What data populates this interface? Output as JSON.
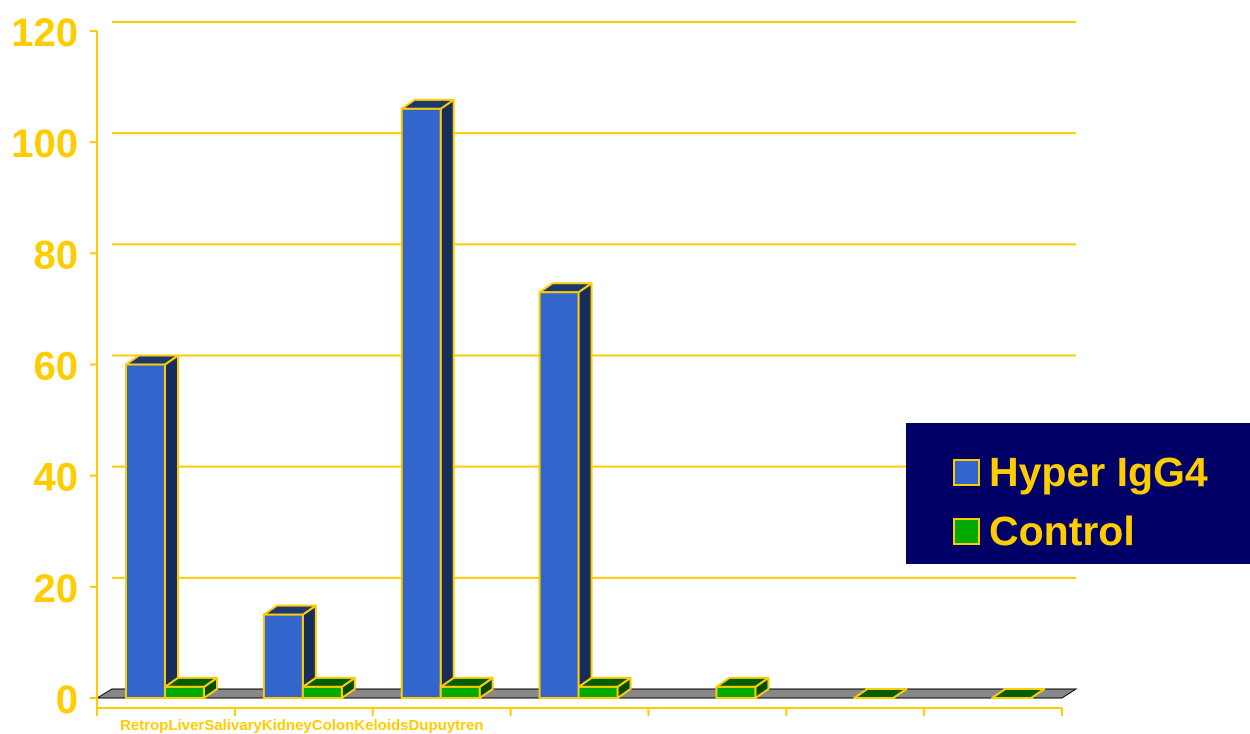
{
  "chart_data": {
    "type": "bar",
    "categories": [
      "Retrop",
      "Liver",
      "Salivary",
      "Kidney",
      "Colon",
      "Keloids",
      "Dupuytren"
    ],
    "series": [
      {
        "name": "Hyper IgG4",
        "values": [
          60,
          15,
          106,
          73,
          null,
          null,
          null
        ],
        "color": "#3366CC"
      },
      {
        "name": "Control",
        "values": [
          2,
          2,
          2,
          2,
          2,
          0,
          0
        ],
        "color": "#00AA00"
      }
    ],
    "y_ticks": [
      "0",
      "20",
      "40",
      "60",
      "80",
      "100",
      "120"
    ],
    "ylim": [
      0,
      120
    ],
    "grid": true,
    "legend_position": "right",
    "three_d": true,
    "colors": {
      "axis_text": "#FFCC00",
      "gridline": "#FFCC00",
      "floor": "#888888",
      "legend_bg": "#000066",
      "bar_edge": "#FFCC00"
    }
  },
  "legend": {
    "items": [
      {
        "label": "Hyper IgG4",
        "color": "#3366CC"
      },
      {
        "label": "Control",
        "color": "#00AA00"
      }
    ]
  }
}
